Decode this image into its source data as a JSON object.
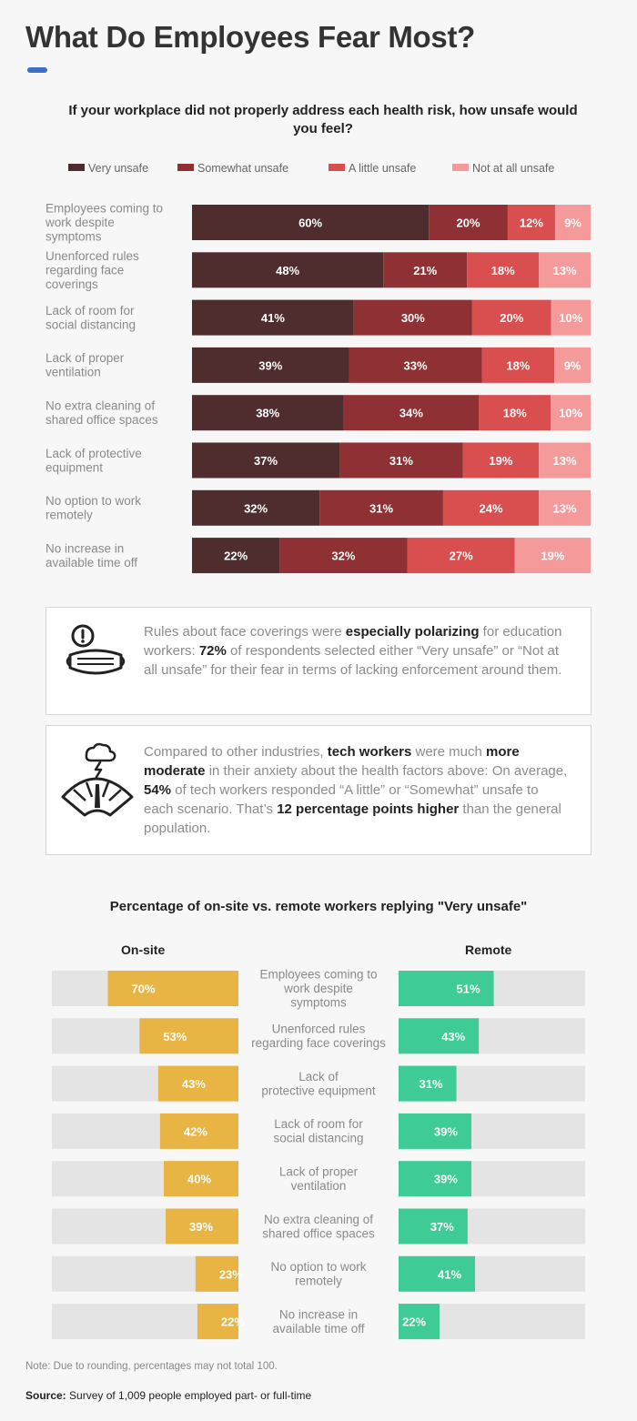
{
  "header": {
    "title": "What Do Employees Fear Most?",
    "accent_color": "#3d6fc8"
  },
  "callouts": [
    {
      "icon": "mask-warning-icon",
      "p1": "Rules about face coverings were ",
      "b1": "especially polarizing",
      "p2": " for education workers: ",
      "b2": " 72%",
      "p3": " of respondents selected either “Very unsafe” or “Not at all unsafe” for their fear in terms of lacking enforcement around them."
    },
    {
      "icon": "storm-gauge-icon",
      "p1": "Compared to other industries, ",
      "b1": "tech workers",
      "p2": " were much ",
      "b2": "more moderate",
      "p3": " in their anxiety about the health factors above: On average, ",
      "b3": "54%",
      "p4": " of tech workers responded “A little” or “Somewhat” unsafe to each scenario. That’s ",
      "b4": "12 percentage points higher",
      "p5": " than the general population."
    }
  ],
  "footer": {
    "note": "Note: Due to rounding, percentages may not total 100.",
    "source_label": "Source:",
    "source_text": " Survey of 1,009 people employed part- or full-time"
  },
  "chart_data": [
    {
      "type": "bar",
      "orientation": "horizontal",
      "stacked": true,
      "title": "If your workplace did not properly address each health risk, how unsafe would you feel?",
      "legend_position": "top",
      "categories": [
        "Employees coming to work despite symptoms",
        "Unenforced rules regarding face coverings",
        "Lack of room for social distancing",
        "Lack of proper ventilation",
        "No extra cleaning of shared office spaces",
        "Lack of protective equipment",
        "No option to work remotely",
        "No increase in available time off"
      ],
      "category_lines": [
        [
          "Employees coming to",
          "work despite",
          "symptoms"
        ],
        [
          "Unenforced rules",
          "regarding face",
          "coverings"
        ],
        [
          "Lack of room for",
          "social distancing"
        ],
        [
          "Lack of proper",
          "ventilation"
        ],
        [
          "No extra cleaning of",
          "shared office spaces"
        ],
        [
          "Lack of protective",
          "equipment"
        ],
        [
          "No option to work",
          "remotely"
        ],
        [
          "No increase in",
          "available time off"
        ]
      ],
      "series": [
        {
          "name": "Very unsafe",
          "color": "#4f2c2e",
          "values": [
            60,
            48,
            41,
            39,
            38,
            37,
            32,
            22
          ]
        },
        {
          "name": "Somewhat unsafe",
          "color": "#8f3134",
          "values": [
            20,
            21,
            30,
            33,
            34,
            31,
            31,
            32
          ]
        },
        {
          "name": "A little unsafe",
          "color": "#d94f4f",
          "values": [
            12,
            18,
            20,
            18,
            18,
            19,
            24,
            27
          ]
        },
        {
          "name": "Not at all unsafe",
          "color": "#f59a9a",
          "values": [
            9,
            13,
            10,
            9,
            10,
            13,
            13,
            19
          ]
        }
      ],
      "value_suffix": "%"
    },
    {
      "type": "bar",
      "orientation": "horizontal",
      "layout": "back-to-back",
      "title": "Percentage of on-site vs. remote workers replying \"Very unsafe\"",
      "xlim": [
        0,
        100
      ],
      "categories": [
        "Employees coming to work despite symptoms",
        "Unenforced rules regarding face coverings",
        "Lack of protective equipment",
        "Lack of room for social distancing",
        "Lack of proper ventilation",
        "No extra cleaning of shared office spaces",
        "No option to work remotely",
        "No increase in available time off"
      ],
      "category_lines": [
        [
          "Employees coming to",
          "work despite",
          "symptoms"
        ],
        [
          "Unenforced rules",
          "regarding face coverings"
        ],
        [
          "Lack of",
          "protective equipment"
        ],
        [
          "Lack of room for",
          "social distancing"
        ],
        [
          "Lack of proper",
          "ventilation"
        ],
        [
          "No extra cleaning of",
          "shared office spaces"
        ],
        [
          "No option to work",
          "remotely"
        ],
        [
          "No increase in",
          "available time off"
        ]
      ],
      "series": [
        {
          "name": "On-site",
          "color": "#e8b444",
          "values": [
            70,
            53,
            43,
            42,
            40,
            39,
            23,
            22
          ]
        },
        {
          "name": "Remote",
          "color": "#3ecb96",
          "values": [
            51,
            43,
            31,
            39,
            39,
            37,
            41,
            22
          ]
        }
      ],
      "track_color": "#e4e4e4",
      "value_suffix": "%"
    }
  ]
}
